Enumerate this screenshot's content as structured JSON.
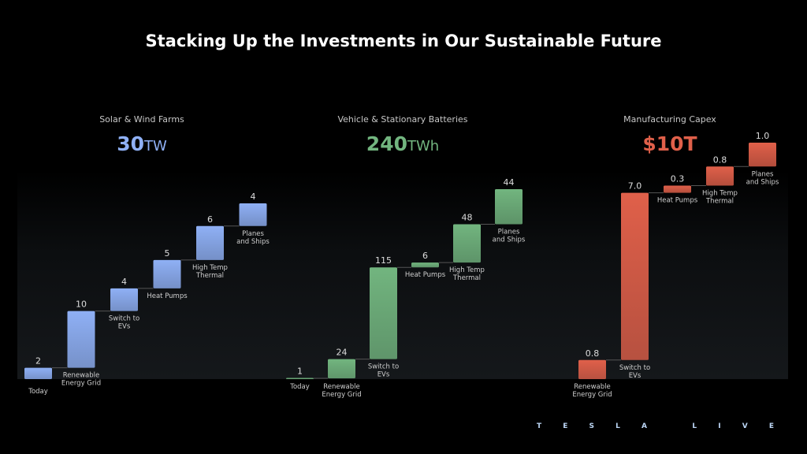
{
  "title": "Stacking Up the Investments in Our Sustainable Future",
  "logo": "TESLA LIVE",
  "chart_data": [
    {
      "type": "waterfall",
      "title": "Solar & Wind Farms",
      "total": "30",
      "unit": "TW",
      "color": "#8fb0f5",
      "categories": [
        "Today",
        "Renewable Energy Grid",
        "Switch to EVs",
        "Heat Pumps",
        "High Temp Thermal",
        "Planes and Ships"
      ],
      "labels": [
        "2",
        "10",
        "4",
        "5",
        "6",
        "4"
      ],
      "values": [
        2,
        10,
        4,
        5,
        6,
        4
      ]
    },
    {
      "type": "waterfall",
      "title": "Vehicle & Stationary Batteries",
      "total": "240",
      "unit": "TWh",
      "color": "#72b57f",
      "categories": [
        "Today",
        "Renewable Energy Grid",
        "Switch to EVs",
        "Heat Pumps",
        "High Temp Thermal",
        "Planes and Ships"
      ],
      "labels": [
        "1",
        "24",
        "115",
        "6",
        "48",
        "44"
      ],
      "values": [
        1,
        24,
        115,
        6,
        48,
        44
      ]
    },
    {
      "type": "waterfall",
      "title": "Manufacturing Capex",
      "total": "$10T",
      "unit": "",
      "color": "#e0604a",
      "categories": [
        "Renewable Energy Grid",
        "Switch to EVs",
        "Heat Pumps",
        "High Temp Thermal",
        "Planes and Ships"
      ],
      "labels": [
        "0.8",
        "7.0",
        "0.3",
        "0.8",
        "1.0"
      ],
      "values": [
        0.8,
        7.0,
        0.3,
        0.8,
        1.0
      ]
    }
  ]
}
